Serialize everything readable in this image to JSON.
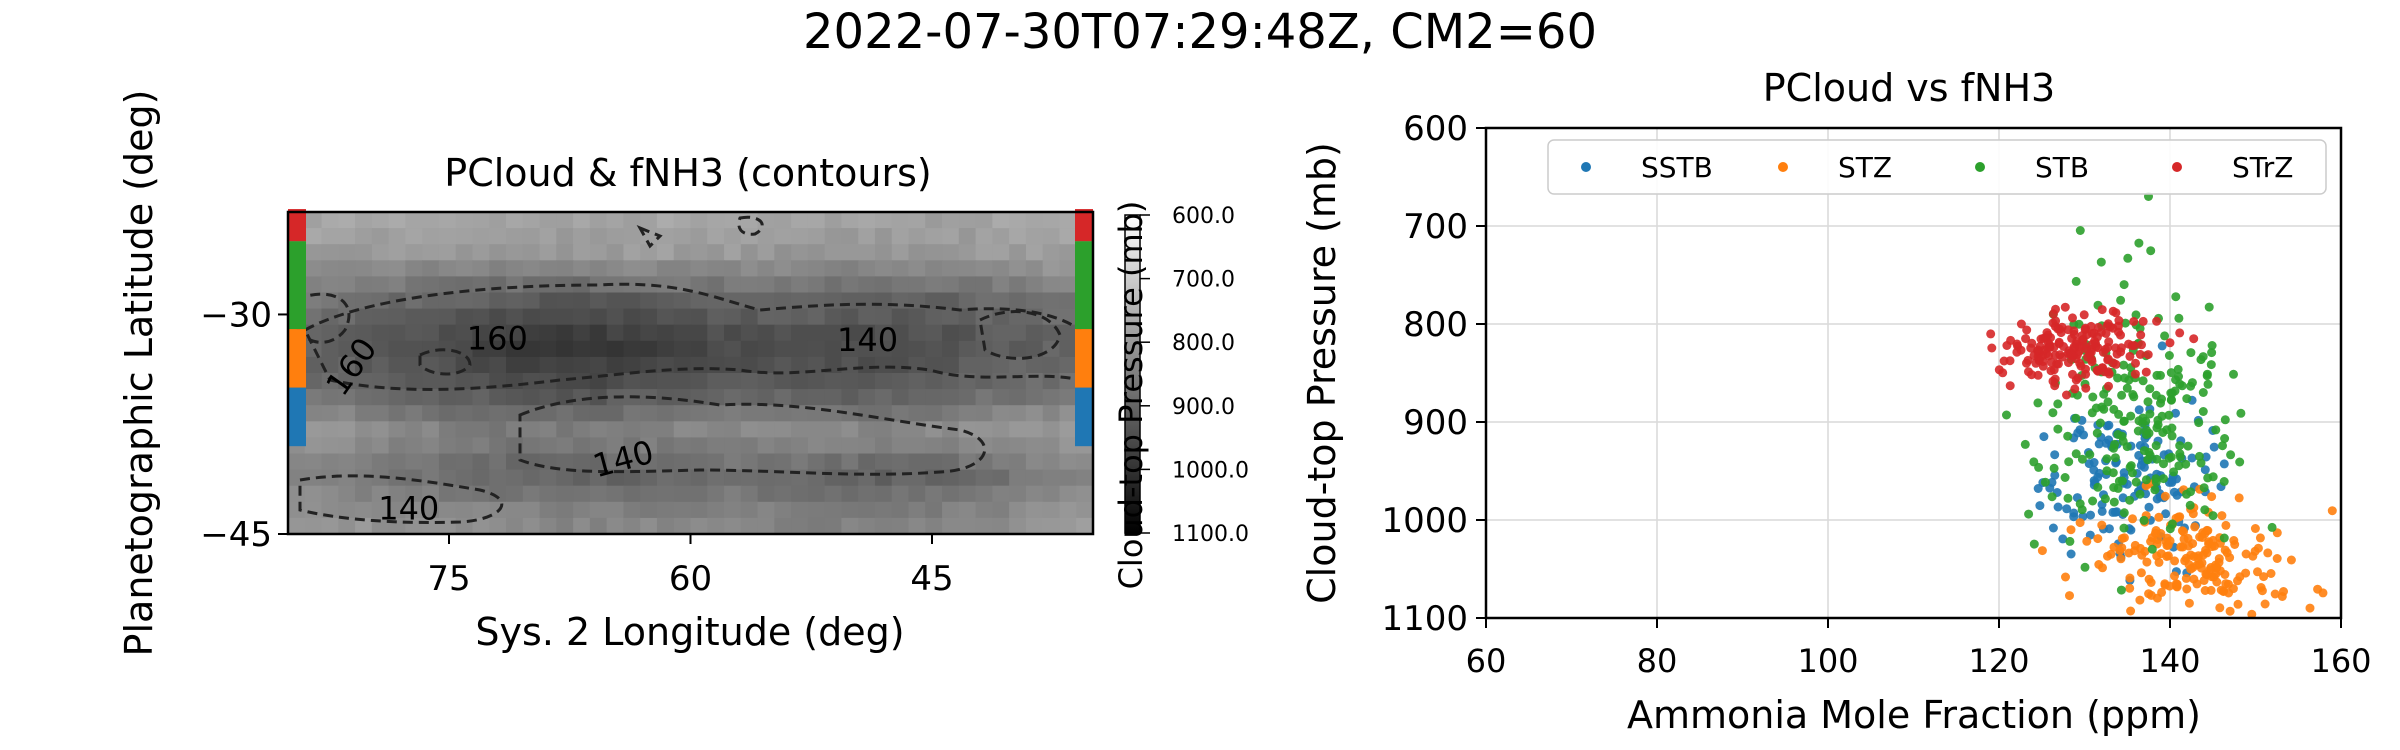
{
  "figure": {
    "suptitle": "2022-07-30T07:29:48Z, CM2=60"
  },
  "colors": {
    "SSTB": "#1f77b4",
    "STZ": "#ff7f0e",
    "STB": "#2ca02c",
    "STrZ": "#d62728",
    "grid": "#d9d9d9",
    "contour": "#222222"
  },
  "chart_data": [
    {
      "type": "heatmap",
      "title": "PCloud & fNH3 (contours)",
      "xlabel": "Sys. 2 Longitude (deg)",
      "ylabel": "Planetographic Latitude (deg)",
      "xlim": [
        85,
        35
      ],
      "ylim": [
        -45,
        -23
      ],
      "xticks": [
        {
          "v": 75,
          "label": "75"
        },
        {
          "v": 60,
          "label": "60"
        },
        {
          "v": 45,
          "label": "45"
        }
      ],
      "yticks": [
        {
          "v": -30,
          "label": "−30"
        },
        {
          "v": -45,
          "label": "−45"
        }
      ],
      "colormap": "gray",
      "colorbar": {
        "label": "Cloud-top Pressure (mb)",
        "range": [
          600,
          1100
        ],
        "ticks": [
          "600.0",
          "700.0",
          "800.0",
          "900.0",
          "1000.0",
          "1100.0"
        ]
      },
      "band_strips": [
        {
          "name": "STrZ",
          "lat": [
            -25,
            -22.8
          ]
        },
        {
          "name": "STB",
          "lat": [
            -31,
            -25
          ]
        },
        {
          "name": "STZ",
          "lat": [
            -35,
            -31
          ]
        },
        {
          "name": "SSTB",
          "lat": [
            -39,
            -35
          ]
        }
      ],
      "contour_labels": [
        {
          "text": "160",
          "lon": 72,
          "lat": -32.4
        },
        {
          "text": "160",
          "lon": 80.5,
          "lat": -34
        },
        {
          "text": "140",
          "lon": 49,
          "lat": -32.5
        },
        {
          "text": "140",
          "lon": 64,
          "lat": -40.6
        },
        {
          "text": "140",
          "lon": 77.5,
          "lat": -44
        }
      ],
      "pressure_rows": [
        {
          "lat": -23,
          "p": [
            770,
            765,
            760,
            775,
            780,
            770,
            760,
            770,
            775,
            780,
            770,
            765
          ]
        },
        {
          "lat": -26,
          "p": [
            790,
            800,
            810,
            805,
            800,
            795,
            800,
            810,
            815,
            805,
            795,
            790
          ]
        },
        {
          "lat": -29,
          "p": [
            860,
            880,
            900,
            920,
            930,
            915,
            900,
            895,
            900,
            905,
            880,
            860
          ]
        },
        {
          "lat": -32,
          "p": [
            900,
            930,
            960,
            990,
            1000,
            980,
            960,
            950,
            960,
            945,
            920,
            900
          ]
        },
        {
          "lat": -35,
          "p": [
            880,
            900,
            920,
            940,
            950,
            930,
            920,
            920,
            930,
            910,
            890,
            870
          ]
        },
        {
          "lat": -38,
          "p": [
            800,
            810,
            840,
            860,
            850,
            840,
            830,
            820,
            830,
            820,
            800,
            790
          ]
        },
        {
          "lat": -41,
          "p": [
            850,
            860,
            880,
            900,
            910,
            900,
            890,
            900,
            910,
            905,
            870,
            850
          ]
        },
        {
          "lat": -44,
          "p": [
            800,
            810,
            820,
            830,
            840,
            835,
            830,
            845,
            850,
            840,
            820,
            800
          ]
        }
      ]
    },
    {
      "type": "scatter",
      "title": "PCloud vs fNH3",
      "xlabel": "Ammonia Mole Fraction (ppm)",
      "ylabel": "Cloud-top Pressure (mb)",
      "xlim": [
        60,
        160
      ],
      "ylim": [
        1100,
        600
      ],
      "xticks": [
        60,
        80,
        100,
        120,
        140,
        160
      ],
      "yticks": [
        600,
        700,
        800,
        900,
        1000,
        1100
      ],
      "grid": true,
      "legend": "top",
      "series": [
        {
          "name": "SSTB",
          "clusters": [
            {
              "cx": 135,
              "cy": 960,
              "sx": 5,
              "sy": 40,
              "n": 140
            }
          ]
        },
        {
          "name": "STZ",
          "clusters": [
            {
              "cx": 143,
              "cy": 1035,
              "sx": 6,
              "sy": 30,
              "n": 190
            }
          ]
        },
        {
          "name": "STB",
          "clusters": [
            {
              "cx": 136,
              "cy": 890,
              "sx": 6,
              "sy": 65,
              "n": 220
            }
          ]
        },
        {
          "name": "STrZ",
          "clusters": [
            {
              "cx": 129,
              "cy": 825,
              "sx": 4.5,
              "sy": 18,
              "n": 180
            }
          ]
        }
      ]
    }
  ]
}
